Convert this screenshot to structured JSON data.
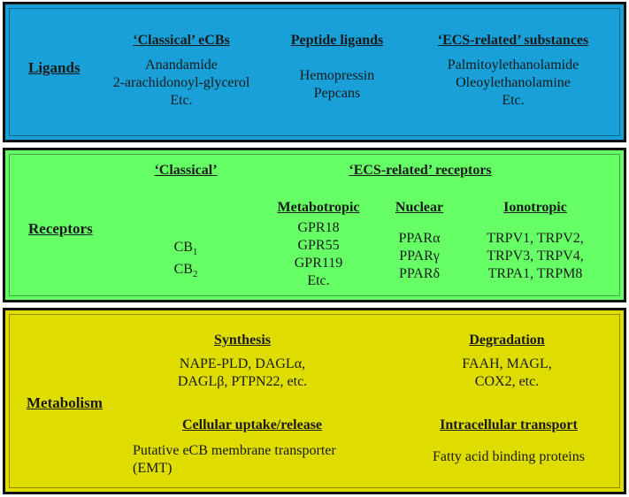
{
  "colors": {
    "ligands_bg": "#1aa0d8",
    "receptors_bg": "#66ff66",
    "metabolism_bg": "#dfdd00",
    "border": "#111111"
  },
  "ligands": {
    "label": "Ligands",
    "classical": {
      "heading": "‘Classical’ eCBs",
      "items": [
        "Anandamide",
        "2-arachidonoyl-glycerol",
        "Etc."
      ]
    },
    "peptide": {
      "heading": "Peptide ligands",
      "items": [
        "Hemopressin",
        "Pepcans"
      ]
    },
    "ecs_related": {
      "heading": "‘ECS-related’ substances",
      "items": [
        "Palmitoylethanolamide",
        "Oleoylethanolamine",
        "Etc."
      ]
    }
  },
  "receptors": {
    "label": "Receptors",
    "classical": {
      "heading": "‘Classical’",
      "items": [
        {
          "base": "CB",
          "sub": "1"
        },
        {
          "base": "CB",
          "sub": "2"
        }
      ]
    },
    "ecs_related_heading": "‘ECS-related’ receptors",
    "metabotropic": {
      "heading": "Metabotropic",
      "items": [
        "GPR18",
        "GPR55",
        "GPR119",
        "Etc."
      ]
    },
    "nuclear": {
      "heading": "Nuclear",
      "items": [
        "PPARα",
        "PPARγ",
        "PPARδ"
      ]
    },
    "ionotropic": {
      "heading": "Ionotropic",
      "items": [
        "TRPV1, TRPV2,",
        "TRPV3, TRPV4,",
        "TRPA1, TRPM8"
      ]
    }
  },
  "metabolism": {
    "label": "Metabolism",
    "synthesis": {
      "heading": "Synthesis",
      "items": [
        "NAPE-PLD, DAGLα,",
        "DAGLβ, PTPN22, etc."
      ]
    },
    "degradation": {
      "heading": "Degradation",
      "items": [
        "FAAH, MAGL,",
        "COX2, etc."
      ]
    },
    "uptake": {
      "heading": "Cellular uptake/release",
      "items": [
        "Putative eCB membrane transporter",
        "(EMT)"
      ]
    },
    "transport": {
      "heading": "Intracellular transport",
      "items": [
        "Fatty acid binding proteins"
      ]
    }
  }
}
